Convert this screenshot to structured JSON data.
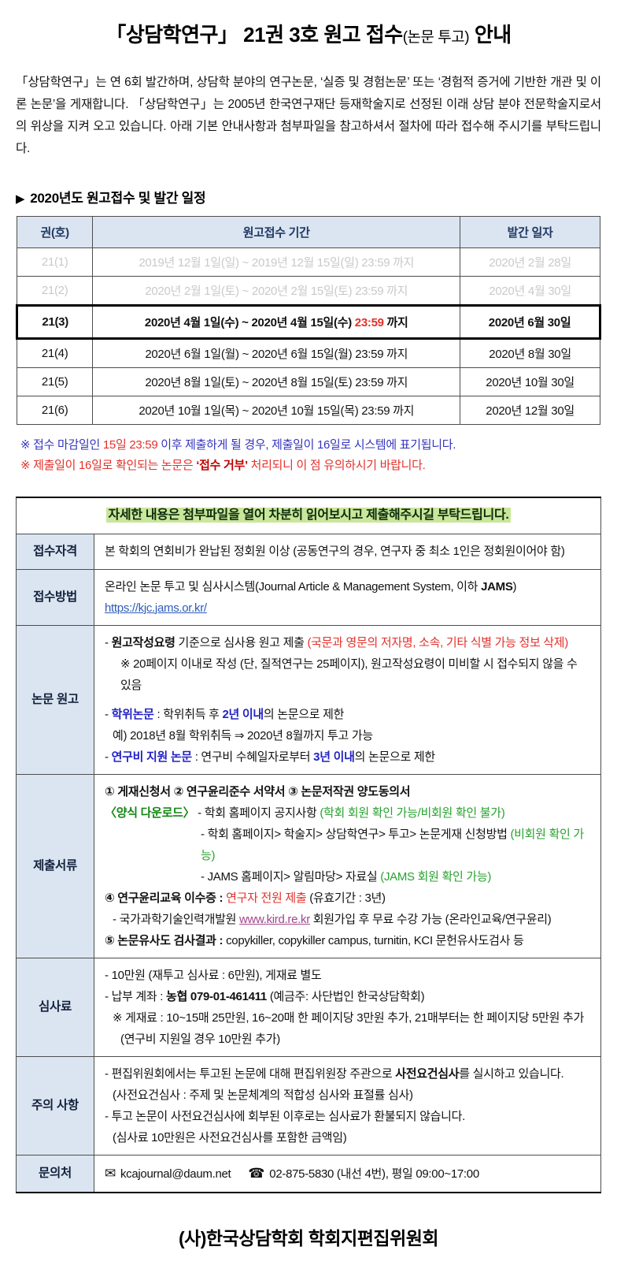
{
  "colors": {
    "header_bg": "#dbe5f1",
    "header_text": "#1f3864",
    "past_text": "#c9c9c9",
    "note_blue": "#3434bd",
    "alert_red": "#e3302a",
    "strong_red": "#c00000",
    "green": "#27a22e",
    "highlight_green": "#c9e69b",
    "link_blue": "#2e5bba",
    "link_purple": "#a3458c"
  },
  "page": {
    "title_main": "「상담학연구」 21권 3호 원고 접수",
    "title_paren": "(논문 투고)",
    "title_tail": " 안내",
    "intro": "「상담학연구」는 연 6회 발간하며, 상담학 분야의 연구논문, ‘실증 및 경험논문’ 또는 ‘경험적 증거에 기반한 개관 및 이론 논문’을 게재합니다. 「상담학연구」는 2005년 한국연구재단 등재학술지로 선정된 이래 상담 분야 전문학술지로서의 위상을 지켜 오고 있습니다. 아래 기본 안내사항과 첨부파일을 참고하셔서 절차에 따라 접수해 주시기를 부탁드립니다.",
    "footer": "(사)한국상담학회 학회지편집위원회"
  },
  "schedule": {
    "heading_arrow": "▶",
    "heading": "2020년도 원고접수 및 발간 일정",
    "col_vol": "권(호)",
    "col_period": "원고접수 기간",
    "col_pub": "발간 일자",
    "rows": [
      {
        "vol": "21(1)",
        "period": "2019년 12월 1일(일) ~ 2019년 12월 15일(일) 23:59 까지",
        "pub": "2020년 2월 28일"
      },
      {
        "vol": "21(2)",
        "period": "2020년 2월 1일(토) ~ 2020년 2월 15일(토) 23:59 까지",
        "pub": "2020년 4월 30일"
      },
      {
        "vol": "21(3)",
        "period_pre": "2020년 4월 1일(수) ~ 2020년 4월 15일(수) ",
        "period_time": "23:59",
        "period_post": " 까지",
        "pub": "2020년 6월 30일"
      },
      {
        "vol": "21(4)",
        "period": "2020년 6월 1일(월) ~ 2020년 6월 15일(월) 23:59 까지",
        "pub": "2020년 8월 30일"
      },
      {
        "vol": "21(5)",
        "period": "2020년 8월 1일(토) ~ 2020년 8월 15일(토) 23:59 까지",
        "pub": "2020년 10월 30일"
      },
      {
        "vol": "21(6)",
        "period": "2020년 10월 1일(목) ~ 2020년 10월 15일(목) 23:59 까지",
        "pub": "2020년 12월 30일"
      }
    ],
    "note1": {
      "mark": "※ ",
      "a": "접수 마감일인 ",
      "b": "15일 23:59",
      "c": " 이후 제출하게 될 경우, 제출일이 16일로 시스템에 표기됩니다."
    },
    "note2": {
      "mark": "※ ",
      "a": "제출일이 16일로 확인되는 논문은 ",
      "b": "‘접수 거부’",
      "c": " 처리되니 이 점 유의하시기 바랍니다."
    }
  },
  "details": {
    "notice": "자세한 내용은 첨부파일을 열어 차분히 읽어보시고 제출해주시길 부탁드립니다.",
    "qualification": {
      "label": "접수자격",
      "text": "본 학회의 연회비가 완납된 정회원 이상 (공동연구의 경우, 연구자 중 최소 1인은 정회원이어야 함)"
    },
    "method": {
      "label": "접수방법",
      "line1_pre": "온라인 논문 투고 및 심사시스템(Journal Article & Management System, 이하 ",
      "line1_bold": "JAMS",
      "line1_post": ")",
      "url": "https://kjc.jams.or.kr/"
    },
    "manuscript": {
      "label": "논문 원고",
      "b1_pre": "- ",
      "b1_bold": "원고작성요령",
      "b1_mid": " 기준으로 심사용 원고 제출 ",
      "b1_red": "(국문과 영문의 저자명, 소속, 기타 식별 가능 정보 삭제)",
      "b1_note": "※ 20페이지 이내로 작성 (단, 질적연구는 25페이지), 원고작성요령이 미비할 시 접수되지 않을 수 있음",
      "b2_pre": "- ",
      "b2_bold": "학위논문",
      "b2_mid": " : 학위취득 후 ",
      "b2_bold2": "2년 이내",
      "b2_post": "의 논문으로 제한",
      "b2_example": "예) 2018년 8월 학위취득 ⇒ 2020년 8월까지 투고 가능",
      "b3_pre": "- ",
      "b3_bold": "연구비 지원 논문",
      "b3_mid": " : 연구비 수혜일자로부터 ",
      "b3_bold2": "3년 이내",
      "b3_post": "의 논문으로 제한"
    },
    "documents": {
      "label": "제출서류",
      "line1": "① 게재신청서  ② 연구윤리준수 서약서  ③ 논문저작권 양도동의서",
      "dl_label": "〈양식 다운로드〉",
      "dl1_pre": " - 학회 홈페이지 공지사항 ",
      "dl1_green": "(학회 회원 확인 가능/비회원 확인 불가)",
      "dl2_pre": "- 학회 홈페이지> 학술지> 상담학연구> 투고> 논문게재 신청방법 ",
      "dl2_green": "(비회원 확인 가능)",
      "dl3_pre": "- JAMS 홈페이지> 알림마당> 자료실 ",
      "dl3_green": "(JAMS 회원 확인 가능)",
      "line4_bold": "④ 연구윤리교육 이수증 : ",
      "line4_red": "연구자 전원 제출",
      "line4_post": " (유효기간 : 3년)",
      "line5_pre": "- 국가과학기술인력개발원 ",
      "line5_link": "www.kird.re.kr",
      "line5_post": " 회원가입 후 무료 수강 가능 (온라인교육/연구윤리)",
      "line6_bold": "⑤ 논문유사도 검사결과 : ",
      "line6_post": "copykiller, copykiller campus, turnitin, KCI 문헌유사도검사 등"
    },
    "fee": {
      "label": "심사료",
      "line1": "- 10만원 (재투고 심사료 : 6만원), 게재료 별도",
      "line2_pre": "- 납부 계좌 : ",
      "line2_bold": "농협 079-01-461411",
      "line2_post": " (예금주: 사단법인 한국상담학회)",
      "line3": "※ 게재료 : 10~15매 25만원, 16~20매 한 페이지당 3만원 추가, 21매부터는 한 페이지당 5만원 추가",
      "line4": "(연구비 지원일 경우 10만원 추가)"
    },
    "caution": {
      "label": "주의 사항",
      "line1_pre": "- 편집위원회에서는 투고된 논문에 대해 편집위원장 주관으로 ",
      "line1_bold": "사전요건심사",
      "line1_post": "를 실시하고 있습니다.",
      "line2": "(사전요건심사 : 주제 및 논문체계의 적합성 심사와 표절률 심사)",
      "line3": "- 투고 논문이 사전요건심사에 회부된 이후로는 심사료가 환불되지 않습니다.",
      "line4": "(심사료 10만원은 사전요건심사를 포함한 금액임)"
    },
    "contact": {
      "label": "문의처",
      "email_icon": "✉",
      "email": "kcajournal@daum.net",
      "phone_icon": "☎",
      "phone_text": "02-875-5830 (내선 4번), 평일 09:00~17:00"
    }
  }
}
